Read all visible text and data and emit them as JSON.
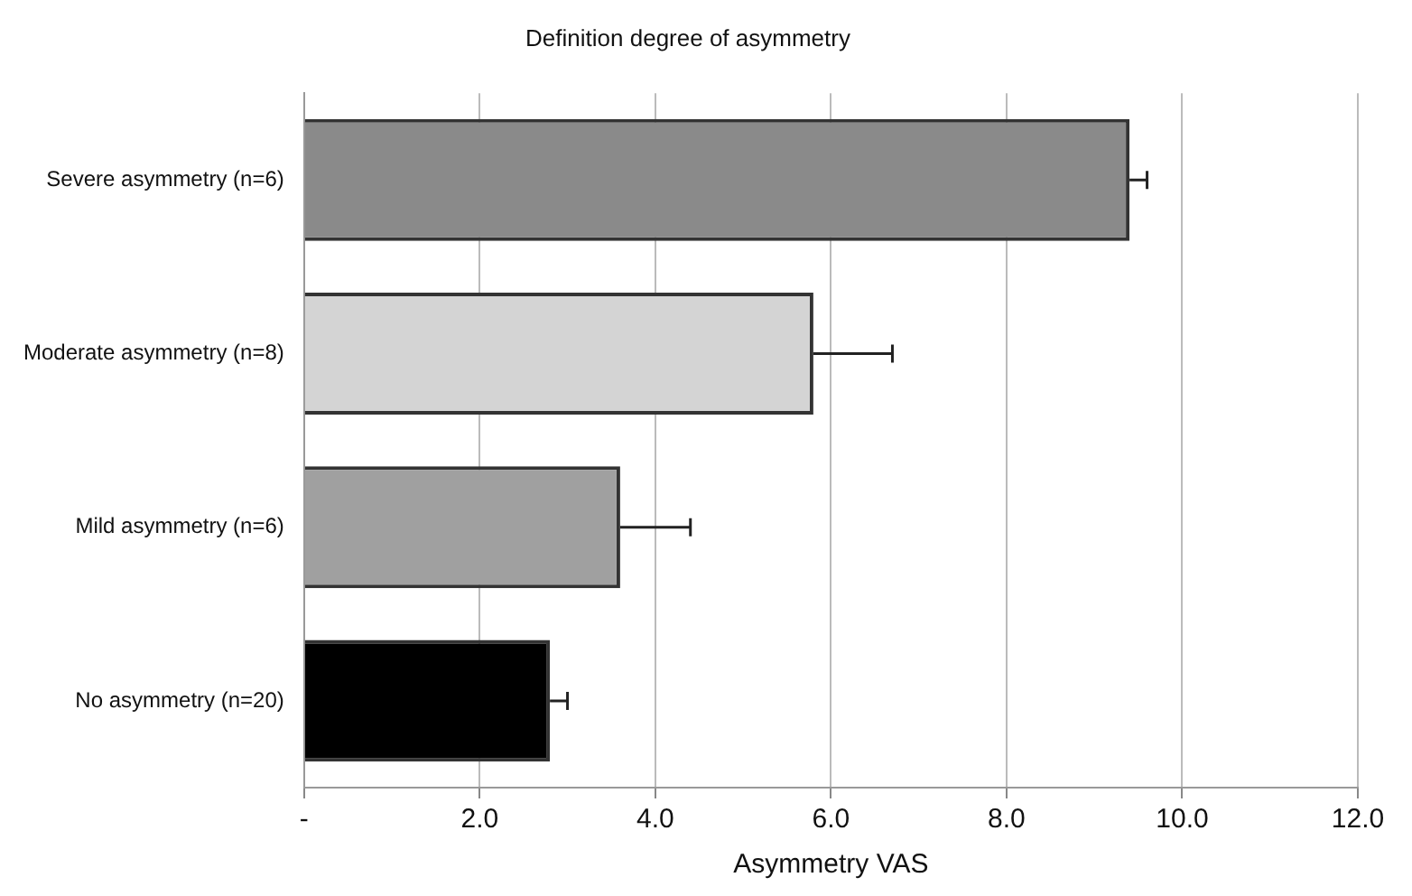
{
  "chart_data": {
    "type": "bar",
    "orientation": "horizontal",
    "title": "Definition degree of asymmetry",
    "xlabel": "Asymmetry VAS",
    "categories": [
      "Severe asymmetry (n=6)",
      "Moderate asymmetry (n=8)",
      "Mild asymmetry (n=6)",
      "No asymmetry (n=20)"
    ],
    "values": [
      9.4,
      5.8,
      3.6,
      2.8
    ],
    "errors": [
      0.2,
      0.9,
      0.8,
      0.2
    ],
    "colors": [
      "#8a8a8a",
      "#d4d4d4",
      "#a0a0a0",
      "#000000"
    ],
    "xlim": [
      0,
      12
    ],
    "xticks": [
      {
        "value": 0,
        "label": "-"
      },
      {
        "value": 2,
        "label": "2.0"
      },
      {
        "value": 4,
        "label": "4.0"
      },
      {
        "value": 6,
        "label": "6.0"
      },
      {
        "value": 8,
        "label": "8.0"
      },
      {
        "value": 10,
        "label": "10.0"
      },
      {
        "value": 12,
        "label": "12.0"
      }
    ],
    "grid": "x",
    "legend": false
  }
}
